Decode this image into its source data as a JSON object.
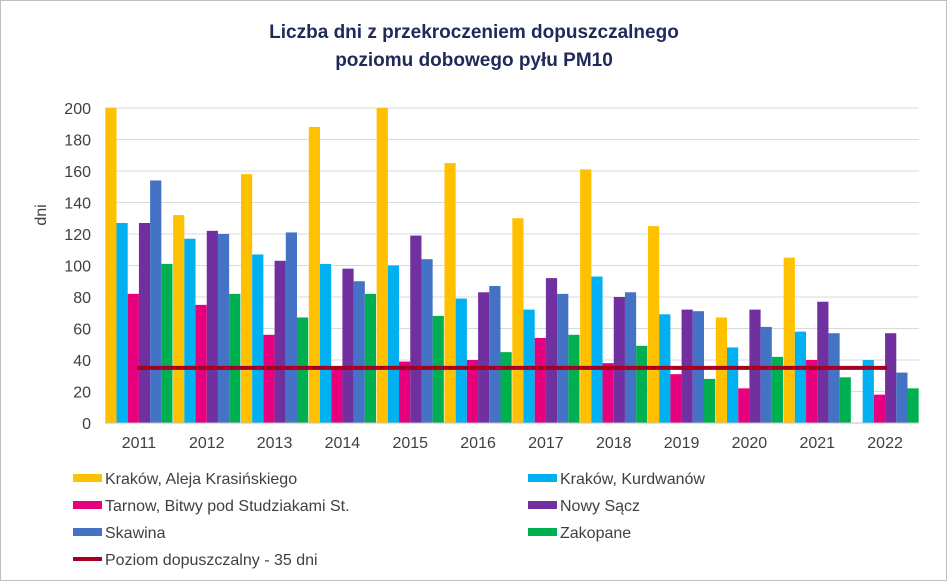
{
  "chart_data": {
    "type": "bar",
    "title_line1": "Liczba dni z przekroczeniem dopuszczalnego",
    "title_line2": "poziomu dobowego pyłu PM10",
    "ylabel": "dni",
    "xlabel": "",
    "ylim": [
      0,
      200
    ],
    "yticks": [
      0,
      20,
      40,
      60,
      80,
      100,
      120,
      140,
      160,
      180,
      200
    ],
    "grid": true,
    "legend_position": "bottom",
    "categories": [
      "2011",
      "2012",
      "2013",
      "2014",
      "2015",
      "2016",
      "2017",
      "2018",
      "2019",
      "2020",
      "2021",
      "2022"
    ],
    "series": [
      {
        "name": "Kraków, Aleja Krasińskiego",
        "color": "#ffc000",
        "values": [
          200,
          132,
          158,
          188,
          200,
          165,
          130,
          161,
          125,
          67,
          105,
          null
        ]
      },
      {
        "name": "Kraków, Kurdwanów",
        "color": "#00b0f0",
        "values": [
          127,
          117,
          107,
          101,
          100,
          79,
          72,
          93,
          69,
          48,
          58,
          40
        ]
      },
      {
        "name": "Tarnow, Bitwy pod Studziakami St.",
        "color": "#e6007e",
        "values": [
          82,
          75,
          56,
          36,
          39,
          40,
          54,
          38,
          31,
          22,
          40,
          18
        ]
      },
      {
        "name": "Nowy Sącz",
        "color": "#7030a0",
        "values": [
          127,
          122,
          103,
          98,
          119,
          83,
          92,
          80,
          72,
          72,
          77,
          57
        ]
      },
      {
        "name": "Skawina",
        "color": "#4472c4",
        "values": [
          154,
          120,
          121,
          90,
          104,
          87,
          82,
          83,
          71,
          61,
          57,
          32
        ]
      },
      {
        "name": "Zakopane",
        "color": "#00b050",
        "values": [
          101,
          82,
          67,
          82,
          68,
          45,
          56,
          49,
          28,
          42,
          29,
          22
        ]
      }
    ],
    "threshold": {
      "name": "Poziom dopuszczalny - 35 dni",
      "value": 35,
      "color": "#a50021"
    }
  }
}
